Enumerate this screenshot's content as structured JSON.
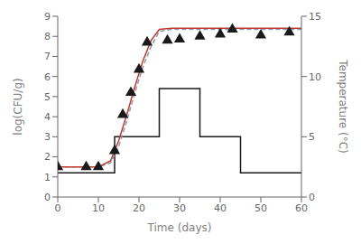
{
  "chart_data": {
    "type": "line",
    "xlabel": "Time (days)",
    "ylabel": "log(CFU/g)",
    "y2label": "Temperature (°C)",
    "xlim": [
      0,
      60
    ],
    "xticks": [
      0,
      10,
      20,
      30,
      40,
      50,
      60
    ],
    "ylim": [
      0,
      9
    ],
    "yticks": [
      0,
      1,
      2,
      3,
      4,
      5,
      6,
      7,
      8,
      9
    ],
    "y2lim": [
      0,
      15
    ],
    "y2ticks": [
      0,
      5,
      10,
      15
    ],
    "series": [
      {
        "axis": "y2",
        "type": "line",
        "color": "#1a1a1a",
        "line_style": "solid",
        "x": [
          0,
          14,
          14,
          25,
          25,
          35,
          35,
          45,
          45,
          60
        ],
        "values": [
          2,
          2,
          5,
          5,
          9,
          9,
          5,
          5,
          2,
          2
        ]
      },
      {
        "type": "line",
        "color": "#8899bb",
        "line_style": "dashed",
        "x": [
          0,
          5,
          10,
          13,
          15,
          17,
          19,
          21,
          23,
          25,
          28,
          35,
          60
        ],
        "values": [
          1.5,
          1.5,
          1.5,
          1.7,
          2.5,
          3.8,
          5.2,
          6.5,
          7.5,
          8.25,
          8.35,
          8.35,
          8.35
        ]
      },
      {
        "type": "line",
        "color": "#c0392b",
        "line_style": "solid",
        "x": [
          0,
          5,
          10,
          13,
          15,
          17,
          19,
          21,
          23,
          25,
          28,
          35,
          60
        ],
        "values": [
          1.5,
          1.5,
          1.5,
          1.8,
          2.8,
          4.1,
          5.5,
          6.8,
          7.8,
          8.35,
          8.4,
          8.4,
          8.4
        ]
      },
      {
        "type": "scatter",
        "marker": "triangle",
        "color": "#1a1a1a",
        "x": [
          0,
          7,
          10,
          14,
          16,
          18,
          20,
          22,
          27,
          30,
          35,
          40,
          43,
          50,
          57
        ],
        "values": [
          1.5,
          1.5,
          1.5,
          2.3,
          4.1,
          5.2,
          6.35,
          7.7,
          7.8,
          7.85,
          8.0,
          8.1,
          8.35,
          8.05,
          8.2
        ]
      }
    ]
  }
}
